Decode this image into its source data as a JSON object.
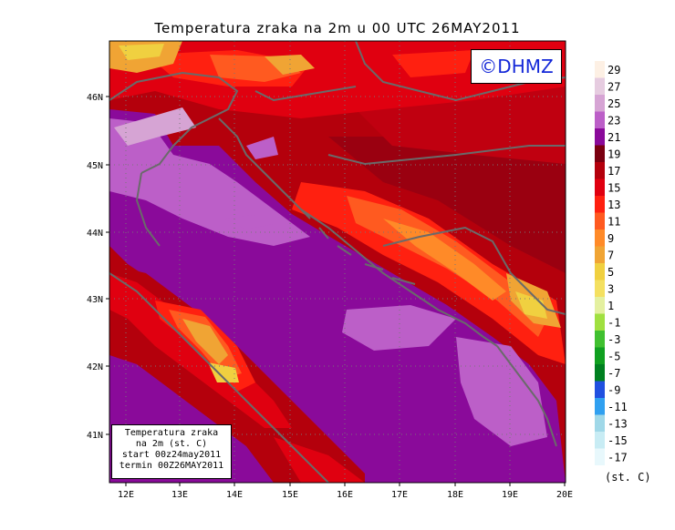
{
  "title": "Temperatura zraka na 2m u 00 UTC 26MAY2011",
  "logo_text": "©DHMZ",
  "info_box": {
    "line1": "Temperatura zraka",
    "line2": "na 2m (st. C)",
    "line3": "start 00z24may2011",
    "line4": "termin 00Z26MAY2011"
  },
  "axes": {
    "x_ticks": [
      "12E",
      "13E",
      "14E",
      "15E",
      "16E",
      "17E",
      "18E",
      "19E",
      "20E"
    ],
    "y_ticks": [
      "46N",
      "45N",
      "44N",
      "43N",
      "42N",
      "41N"
    ]
  },
  "legend": {
    "unit": "(st. C)",
    "bins": [
      {
        "label": "29",
        "color": "#fdf0e4"
      },
      {
        "label": "27",
        "color": "#e6cce0"
      },
      {
        "label": "25",
        "color": "#d6a4d4"
      },
      {
        "label": "23",
        "color": "#bc5fc8"
      },
      {
        "label": "21",
        "color": "#8a0a9a"
      },
      {
        "label": "19",
        "color": "#7a0010"
      },
      {
        "label": "17",
        "color": "#b4000c"
      },
      {
        "label": "15",
        "color": "#e00010"
      },
      {
        "label": "13",
        "color": "#ff2010"
      },
      {
        "label": "11",
        "color": "#ff5a20"
      },
      {
        "label": "9",
        "color": "#ff8a28"
      },
      {
        "label": "7",
        "color": "#f0a434"
      },
      {
        "label": "5",
        "color": "#f0d040"
      },
      {
        "label": "3",
        "color": "#f4e060"
      },
      {
        "label": "1",
        "color": "#e4f0a0"
      },
      {
        "label": "-1",
        "color": "#a0e040"
      },
      {
        "label": "-3",
        "color": "#40c030"
      },
      {
        "label": "-5",
        "color": "#10a020"
      },
      {
        "label": "-7",
        "color": "#008020"
      },
      {
        "label": "-9",
        "color": "#2050e0"
      },
      {
        "label": "-11",
        "color": "#30a0f0"
      },
      {
        "label": "-13",
        "color": "#a0d8e8"
      },
      {
        "label": "-15",
        "color": "#c8ecf4"
      },
      {
        "label": "-17",
        "color": "#e8f8fc"
      }
    ]
  }
}
